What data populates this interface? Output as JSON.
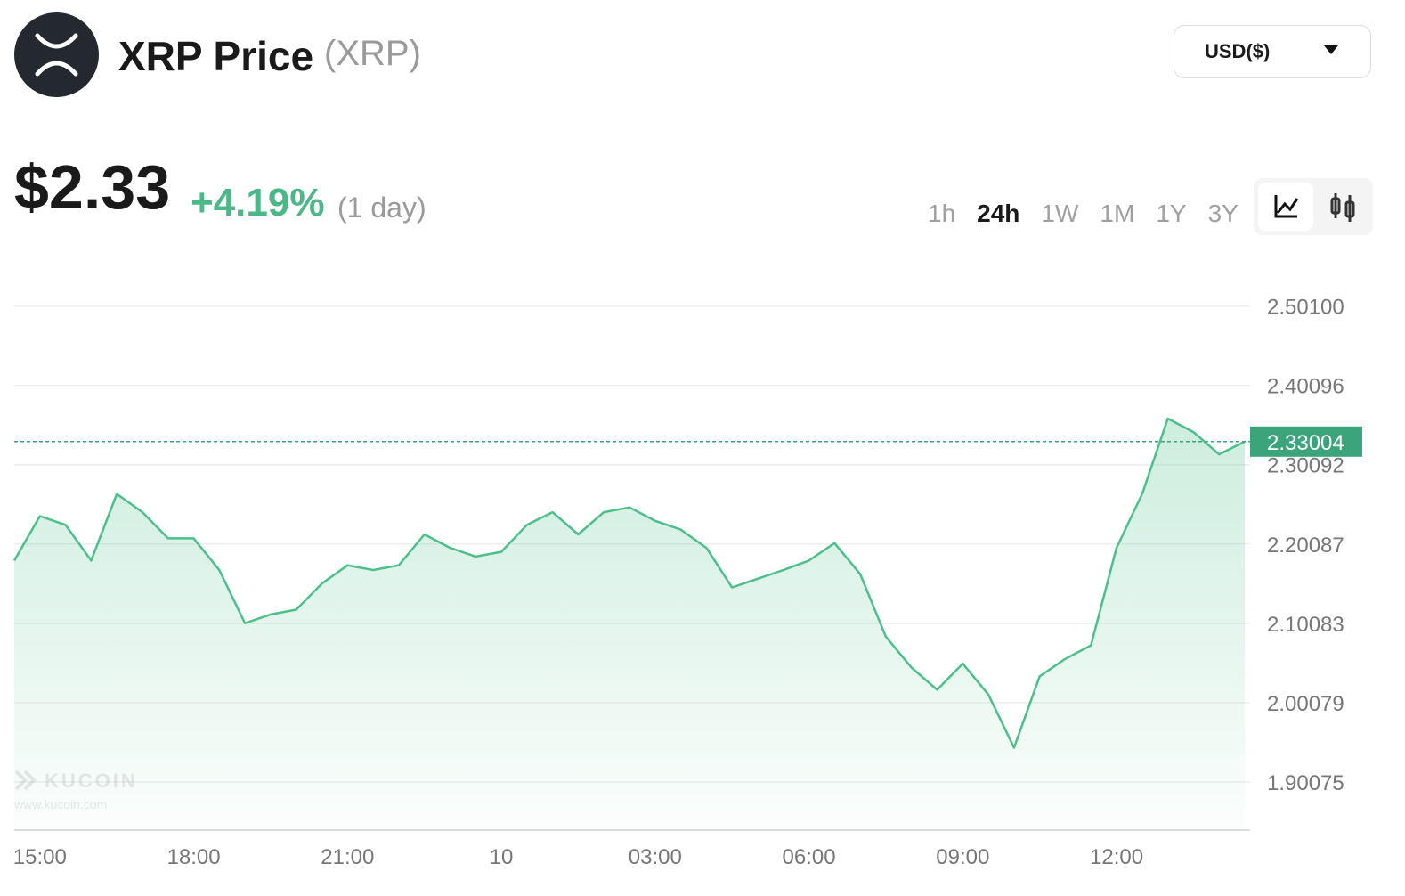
{
  "header": {
    "title": "XRP Price",
    "symbol": "(XRP)",
    "currency": "USD($)",
    "price": "$2.33",
    "change": "+4.19%",
    "period": "(1 day)",
    "timeframes": [
      "1h",
      "24h",
      "1W",
      "1M",
      "1Y",
      "3Y"
    ],
    "active_timeframe": "24h",
    "watermark": "KUCOIN",
    "watermark_url": "www.kucoin.com"
  },
  "chart_data": {
    "type": "line",
    "categories": [
      null,
      "15:00",
      null,
      null,
      null,
      null,
      null,
      "18:00",
      null,
      null,
      null,
      null,
      null,
      "21:00",
      null,
      null,
      null,
      null,
      null,
      "10",
      null,
      null,
      null,
      null,
      null,
      "03:00",
      null,
      null,
      null,
      null,
      null,
      "06:00",
      null,
      null,
      null,
      null,
      null,
      "09:00",
      null,
      null,
      null,
      null,
      null,
      "12:00",
      null,
      null,
      null,
      null,
      null
    ],
    "series": [
      {
        "name": "XRP",
        "color": "#4cbf8a",
        "values": [
          2.18,
          2.236,
          2.225,
          2.18,
          2.264,
          2.241,
          2.208,
          2.208,
          2.168,
          2.101,
          2.112,
          2.118,
          2.151,
          2.174,
          2.168,
          2.174,
          2.213,
          2.196,
          2.185,
          2.191,
          2.225,
          2.241,
          2.213,
          2.241,
          2.247,
          2.23,
          2.219,
          2.196,
          2.146,
          2.157,
          2.168,
          2.18,
          2.202,
          2.163,
          2.084,
          2.045,
          2.017,
          2.05,
          2.011,
          1.944,
          2.034,
          2.056,
          2.073,
          2.196,
          2.264,
          2.359,
          2.342,
          2.314,
          2.33
        ]
      }
    ],
    "ylim": [
      1.84,
      2.55
    ],
    "yticks": [
      1.90075,
      2.00079,
      2.10083,
      2.20087,
      2.30092,
      2.40096,
      {
        "value": 2.501,
        "label": "2.50100"
      }
    ],
    "current_price": 2.33004,
    "grid": true
  }
}
